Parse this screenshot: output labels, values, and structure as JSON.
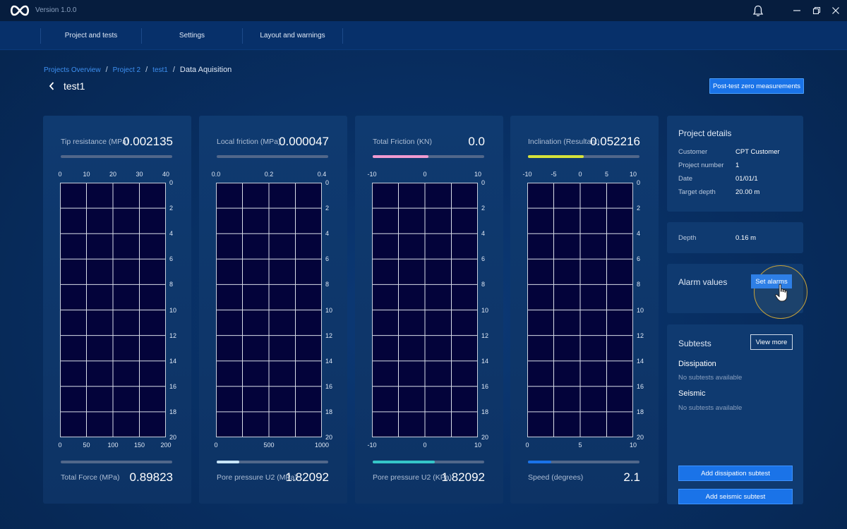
{
  "app": {
    "version": "Version 1.0.0",
    "icons": {
      "logo": "infinity-logo",
      "notifications": "bell-icon",
      "minimize": "minimize-icon",
      "maximize": "restore-icon",
      "close": "close-icon"
    }
  },
  "nav": {
    "tabs": [
      {
        "label": "Project and tests"
      },
      {
        "label": "Settings"
      },
      {
        "label": "Layout and warnings"
      }
    ]
  },
  "breadcrumb": {
    "items": [
      "Projects Overview",
      "Project 2",
      "test1"
    ],
    "current": "Data Aquisition",
    "separator": "/"
  },
  "page": {
    "title": "test1",
    "post_test_button": "Post-test zero measurements"
  },
  "panels": [
    {
      "top_label": "Tip resistance (MPa)",
      "top_value": "0.002135",
      "top_bar": {
        "color": "#4e6585",
        "fill": 0.0
      },
      "bottom_label": "Total Force (MPa)",
      "bottom_value": "0.89823",
      "bottom_bar": {
        "color": "#4e6585",
        "fill": 0.0
      },
      "top_ticks": [
        "0",
        "10",
        "20",
        "30",
        "40"
      ],
      "bottom_ticks": [
        "0",
        "50",
        "100",
        "150",
        "200"
      ],
      "depth_ticks": [
        "0",
        "2",
        "4",
        "6",
        "8",
        "10",
        "12",
        "14",
        "16",
        "18",
        "20"
      ]
    },
    {
      "top_label": "Local friction (MPa)",
      "top_value": "0.000047",
      "top_bar": {
        "color": "#4e6585",
        "fill": 0.0
      },
      "bottom_label": "Pore pressure U2 (MPa)",
      "bottom_value": "1.82092",
      "bottom_bar": {
        "color": "#c7e4f7",
        "fill": 0.2
      },
      "top_ticks": [
        "0.0",
        "0.2",
        "0.4"
      ],
      "bottom_ticks": [
        "0",
        "500",
        "1000"
      ],
      "depth_ticks": [
        "0",
        "2",
        "4",
        "6",
        "8",
        "10",
        "12",
        "14",
        "16",
        "18",
        "20"
      ]
    },
    {
      "top_label": "Total Friction (KN)",
      "top_value": "0.0",
      "top_bar": {
        "color": "#f09ad0",
        "fill": 0.5
      },
      "bottom_label": "Pore pressure U2 (KPa)",
      "bottom_value": "1.82092",
      "bottom_bar": {
        "color": "#35c6c8",
        "fill": 0.56
      },
      "top_ticks": [
        "-10",
        "0",
        "10"
      ],
      "bottom_ticks": [
        "-10",
        "0",
        "10"
      ],
      "depth_ticks": [
        "0",
        "2",
        "4",
        "6",
        "8",
        "10",
        "12",
        "14",
        "16",
        "18",
        "20"
      ]
    },
    {
      "top_label": "Inclination (Resultant)",
      "top_value": "0.052216",
      "top_bar": {
        "color": "#d6e23a",
        "fill": 0.5
      },
      "bottom_label": "Speed (degrees)",
      "bottom_value": "2.1",
      "bottom_bar": {
        "color": "#1a73e8",
        "fill": 0.21
      },
      "top_ticks": [
        "-10",
        "-5",
        "0",
        "5",
        "10"
      ],
      "bottom_ticks": [
        "0",
        "5",
        "10"
      ],
      "depth_ticks": [
        "0",
        "2",
        "4",
        "6",
        "8",
        "10",
        "12",
        "14",
        "16",
        "18",
        "20"
      ]
    }
  ],
  "project_details": {
    "title": "Project details",
    "rows": [
      {
        "key": "Customer",
        "value": "CPT Customer"
      },
      {
        "key": "Project number",
        "value": "1"
      },
      {
        "key": "Date",
        "value": "01/01/1"
      },
      {
        "key": "Target depth",
        "value": "20.00 m"
      }
    ]
  },
  "depth": {
    "label": "Depth",
    "value": "0.16 m"
  },
  "alarms": {
    "title": "Alarm values",
    "button": "Set alarms",
    "cursor_icon": "hand-pointer-icon"
  },
  "subtests": {
    "title": "Subtests",
    "view_more": "View more",
    "groups": [
      {
        "name": "Dissipation",
        "empty_text": "No subtests available"
      },
      {
        "name": "Seismic",
        "empty_text": "No subtests available"
      }
    ],
    "add_dissipation": "Add dissipation subtest",
    "add_seismic": "Add seismic subtest"
  }
}
